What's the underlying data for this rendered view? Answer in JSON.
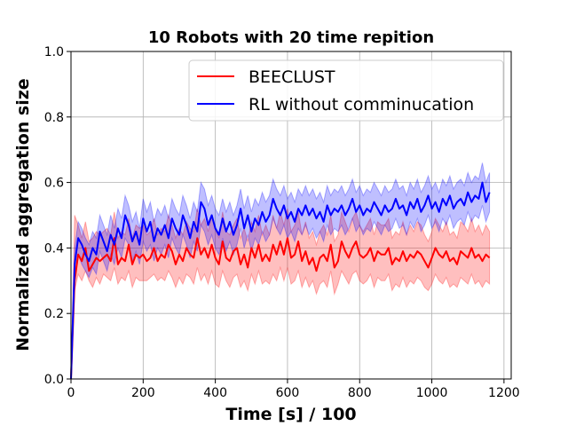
{
  "chart_data": {
    "type": "line",
    "title": "10 Robots with 20 time repition",
    "xlabel": "Time [s] / 100",
    "ylabel": "Normalized aggregation size",
    "xlim": [
      0,
      1220
    ],
    "ylim": [
      0.0,
      1.0
    ],
    "xticks": [
      0,
      200,
      400,
      600,
      800,
      1000,
      1200
    ],
    "xtick_labels": [
      "0",
      "200",
      "400",
      "600",
      "800",
      "1000",
      "1200"
    ],
    "yticks": [
      0.0,
      0.2,
      0.4,
      0.6,
      0.8,
      1.0
    ],
    "ytick_labels": [
      "0.0",
      "0.2",
      "0.4",
      "0.6",
      "0.8",
      "1.0"
    ],
    "grid": true,
    "legend_position": "top-right",
    "x": [
      0,
      10,
      20,
      30,
      40,
      50,
      60,
      70,
      80,
      90,
      100,
      110,
      120,
      130,
      140,
      150,
      160,
      170,
      180,
      190,
      200,
      210,
      220,
      230,
      240,
      250,
      260,
      270,
      280,
      290,
      300,
      310,
      320,
      330,
      340,
      350,
      360,
      370,
      380,
      390,
      400,
      410,
      420,
      430,
      440,
      450,
      460,
      470,
      480,
      490,
      500,
      510,
      520,
      530,
      540,
      550,
      560,
      570,
      580,
      590,
      600,
      610,
      620,
      630,
      640,
      650,
      660,
      670,
      680,
      690,
      700,
      710,
      720,
      730,
      740,
      750,
      760,
      770,
      780,
      790,
      800,
      810,
      820,
      830,
      840,
      850,
      860,
      870,
      880,
      890,
      900,
      910,
      920,
      930,
      940,
      950,
      960,
      970,
      980,
      990,
      1000,
      1010,
      1020,
      1030,
      1040,
      1050,
      1060,
      1070,
      1080,
      1090,
      1100,
      1110,
      1120,
      1130,
      1140,
      1150,
      1160
    ],
    "series": [
      {
        "name": "BEECLUST",
        "color": "#ff0000",
        "values": [
          0.0,
          0.3,
          0.38,
          0.36,
          0.4,
          0.33,
          0.35,
          0.37,
          0.36,
          0.37,
          0.38,
          0.36,
          0.43,
          0.35,
          0.37,
          0.36,
          0.41,
          0.35,
          0.38,
          0.37,
          0.38,
          0.36,
          0.37,
          0.4,
          0.36,
          0.38,
          0.37,
          0.41,
          0.39,
          0.35,
          0.38,
          0.36,
          0.4,
          0.38,
          0.37,
          0.43,
          0.38,
          0.4,
          0.37,
          0.41,
          0.37,
          0.35,
          0.42,
          0.37,
          0.36,
          0.39,
          0.4,
          0.35,
          0.38,
          0.34,
          0.4,
          0.37,
          0.41,
          0.36,
          0.38,
          0.36,
          0.41,
          0.38,
          0.42,
          0.38,
          0.43,
          0.37,
          0.38,
          0.42,
          0.36,
          0.39,
          0.35,
          0.37,
          0.33,
          0.37,
          0.38,
          0.36,
          0.41,
          0.34,
          0.36,
          0.42,
          0.39,
          0.37,
          0.4,
          0.42,
          0.38,
          0.37,
          0.38,
          0.4,
          0.36,
          0.39,
          0.38,
          0.38,
          0.4,
          0.35,
          0.37,
          0.36,
          0.39,
          0.36,
          0.38,
          0.37,
          0.39,
          0.38,
          0.36,
          0.34,
          0.37,
          0.4,
          0.38,
          0.37,
          0.39,
          0.36,
          0.37,
          0.35,
          0.39,
          0.38,
          0.37,
          0.4,
          0.37,
          0.38,
          0.36,
          0.38,
          0.37
        ],
        "lower": [
          0.0,
          0.27,
          0.32,
          0.3,
          0.33,
          0.3,
          0.28,
          0.31,
          0.29,
          0.32,
          0.31,
          0.3,
          0.34,
          0.29,
          0.31,
          0.3,
          0.33,
          0.28,
          0.31,
          0.3,
          0.3,
          0.3,
          0.31,
          0.32,
          0.3,
          0.31,
          0.3,
          0.33,
          0.31,
          0.28,
          0.31,
          0.29,
          0.32,
          0.31,
          0.29,
          0.34,
          0.3,
          0.32,
          0.29,
          0.33,
          0.29,
          0.28,
          0.33,
          0.3,
          0.28,
          0.31,
          0.32,
          0.28,
          0.3,
          0.27,
          0.32,
          0.29,
          0.33,
          0.29,
          0.3,
          0.29,
          0.32,
          0.3,
          0.34,
          0.3,
          0.34,
          0.29,
          0.3,
          0.33,
          0.28,
          0.31,
          0.28,
          0.3,
          0.26,
          0.29,
          0.3,
          0.28,
          0.33,
          0.26,
          0.29,
          0.33,
          0.31,
          0.29,
          0.32,
          0.33,
          0.3,
          0.29,
          0.3,
          0.32,
          0.28,
          0.31,
          0.3,
          0.3,
          0.32,
          0.27,
          0.29,
          0.28,
          0.31,
          0.28,
          0.3,
          0.29,
          0.31,
          0.3,
          0.28,
          0.27,
          0.29,
          0.32,
          0.3,
          0.29,
          0.31,
          0.28,
          0.29,
          0.28,
          0.31,
          0.3,
          0.29,
          0.32,
          0.29,
          0.3,
          0.28,
          0.3,
          0.29
        ],
        "upper": [
          0.0,
          0.5,
          0.47,
          0.43,
          0.48,
          0.42,
          0.43,
          0.45,
          0.44,
          0.45,
          0.46,
          0.44,
          0.51,
          0.43,
          0.45,
          0.44,
          0.49,
          0.43,
          0.47,
          0.46,
          0.47,
          0.44,
          0.45,
          0.49,
          0.44,
          0.46,
          0.45,
          0.5,
          0.47,
          0.43,
          0.46,
          0.44,
          0.48,
          0.46,
          0.45,
          0.52,
          0.47,
          0.49,
          0.45,
          0.5,
          0.46,
          0.43,
          0.51,
          0.45,
          0.44,
          0.47,
          0.49,
          0.43,
          0.46,
          0.42,
          0.48,
          0.45,
          0.5,
          0.44,
          0.47,
          0.44,
          0.5,
          0.46,
          0.51,
          0.47,
          0.52,
          0.45,
          0.47,
          0.51,
          0.44,
          0.48,
          0.43,
          0.45,
          0.41,
          0.45,
          0.47,
          0.44,
          0.5,
          0.42,
          0.44,
          0.51,
          0.48,
          0.45,
          0.49,
          0.51,
          0.47,
          0.45,
          0.47,
          0.49,
          0.44,
          0.48,
          0.47,
          0.47,
          0.49,
          0.43,
          0.45,
          0.44,
          0.48,
          0.44,
          0.47,
          0.45,
          0.48,
          0.47,
          0.44,
          0.42,
          0.45,
          0.49,
          0.47,
          0.45,
          0.48,
          0.44,
          0.45,
          0.43,
          0.48,
          0.47,
          0.45,
          0.49,
          0.45,
          0.47,
          0.44,
          0.47,
          0.45
        ]
      },
      {
        "name": "RL without comminucation",
        "color": "#0000ff",
        "values": [
          0.0,
          0.35,
          0.43,
          0.41,
          0.38,
          0.36,
          0.4,
          0.38,
          0.45,
          0.42,
          0.39,
          0.44,
          0.41,
          0.46,
          0.43,
          0.5,
          0.47,
          0.42,
          0.45,
          0.41,
          0.49,
          0.45,
          0.48,
          0.42,
          0.46,
          0.44,
          0.47,
          0.43,
          0.49,
          0.46,
          0.44,
          0.5,
          0.47,
          0.43,
          0.48,
          0.45,
          0.54,
          0.52,
          0.47,
          0.5,
          0.46,
          0.44,
          0.49,
          0.45,
          0.48,
          0.44,
          0.47,
          0.52,
          0.46,
          0.5,
          0.45,
          0.49,
          0.47,
          0.51,
          0.48,
          0.5,
          0.55,
          0.52,
          0.5,
          0.53,
          0.49,
          0.51,
          0.48,
          0.52,
          0.5,
          0.53,
          0.5,
          0.52,
          0.49,
          0.51,
          0.48,
          0.53,
          0.5,
          0.52,
          0.51,
          0.53,
          0.5,
          0.52,
          0.55,
          0.51,
          0.53,
          0.5,
          0.52,
          0.51,
          0.54,
          0.52,
          0.5,
          0.53,
          0.51,
          0.52,
          0.55,
          0.52,
          0.53,
          0.5,
          0.54,
          0.52,
          0.55,
          0.51,
          0.53,
          0.56,
          0.52,
          0.54,
          0.51,
          0.55,
          0.53,
          0.56,
          0.52,
          0.54,
          0.55,
          0.53,
          0.57,
          0.54,
          0.56,
          0.55,
          0.6,
          0.54,
          0.57
        ],
        "lower": [
          0.0,
          0.3,
          0.38,
          0.35,
          0.33,
          0.31,
          0.34,
          0.32,
          0.39,
          0.36,
          0.33,
          0.38,
          0.35,
          0.4,
          0.37,
          0.43,
          0.41,
          0.36,
          0.39,
          0.35,
          0.42,
          0.39,
          0.41,
          0.36,
          0.4,
          0.38,
          0.41,
          0.37,
          0.43,
          0.4,
          0.38,
          0.44,
          0.41,
          0.37,
          0.42,
          0.39,
          0.47,
          0.45,
          0.41,
          0.44,
          0.4,
          0.38,
          0.43,
          0.39,
          0.42,
          0.38,
          0.41,
          0.46,
          0.4,
          0.44,
          0.39,
          0.43,
          0.41,
          0.45,
          0.42,
          0.44,
          0.49,
          0.46,
          0.44,
          0.47,
          0.43,
          0.45,
          0.42,
          0.46,
          0.44,
          0.47,
          0.44,
          0.46,
          0.43,
          0.45,
          0.42,
          0.47,
          0.44,
          0.46,
          0.45,
          0.47,
          0.44,
          0.46,
          0.49,
          0.45,
          0.47,
          0.44,
          0.46,
          0.45,
          0.48,
          0.46,
          0.44,
          0.47,
          0.45,
          0.46,
          0.49,
          0.46,
          0.47,
          0.44,
          0.48,
          0.46,
          0.49,
          0.45,
          0.47,
          0.5,
          0.46,
          0.48,
          0.45,
          0.49,
          0.47,
          0.5,
          0.46,
          0.48,
          0.49,
          0.47,
          0.51,
          0.48,
          0.5,
          0.49,
          0.53,
          0.48,
          0.51
        ],
        "upper": [
          0.0,
          0.4,
          0.48,
          0.46,
          0.43,
          0.41,
          0.45,
          0.43,
          0.5,
          0.47,
          0.44,
          0.5,
          0.46,
          0.52,
          0.49,
          0.56,
          0.53,
          0.48,
          0.51,
          0.46,
          0.55,
          0.51,
          0.54,
          0.48,
          0.52,
          0.5,
          0.53,
          0.49,
          0.55,
          0.52,
          0.5,
          0.56,
          0.53,
          0.49,
          0.54,
          0.51,
          0.6,
          0.58,
          0.53,
          0.56,
          0.52,
          0.5,
          0.55,
          0.51,
          0.54,
          0.5,
          0.53,
          0.58,
          0.52,
          0.56,
          0.51,
          0.55,
          0.53,
          0.57,
          0.54,
          0.56,
          0.61,
          0.58,
          0.56,
          0.59,
          0.55,
          0.57,
          0.54,
          0.58,
          0.56,
          0.59,
          0.56,
          0.58,
          0.55,
          0.57,
          0.54,
          0.59,
          0.56,
          0.58,
          0.57,
          0.59,
          0.56,
          0.58,
          0.61,
          0.57,
          0.59,
          0.56,
          0.58,
          0.57,
          0.6,
          0.58,
          0.56,
          0.59,
          0.57,
          0.58,
          0.61,
          0.58,
          0.59,
          0.56,
          0.6,
          0.58,
          0.61,
          0.57,
          0.59,
          0.62,
          0.58,
          0.6,
          0.57,
          0.61,
          0.59,
          0.62,
          0.58,
          0.6,
          0.61,
          0.59,
          0.63,
          0.6,
          0.62,
          0.61,
          0.66,
          0.6,
          0.63
        ]
      }
    ]
  }
}
